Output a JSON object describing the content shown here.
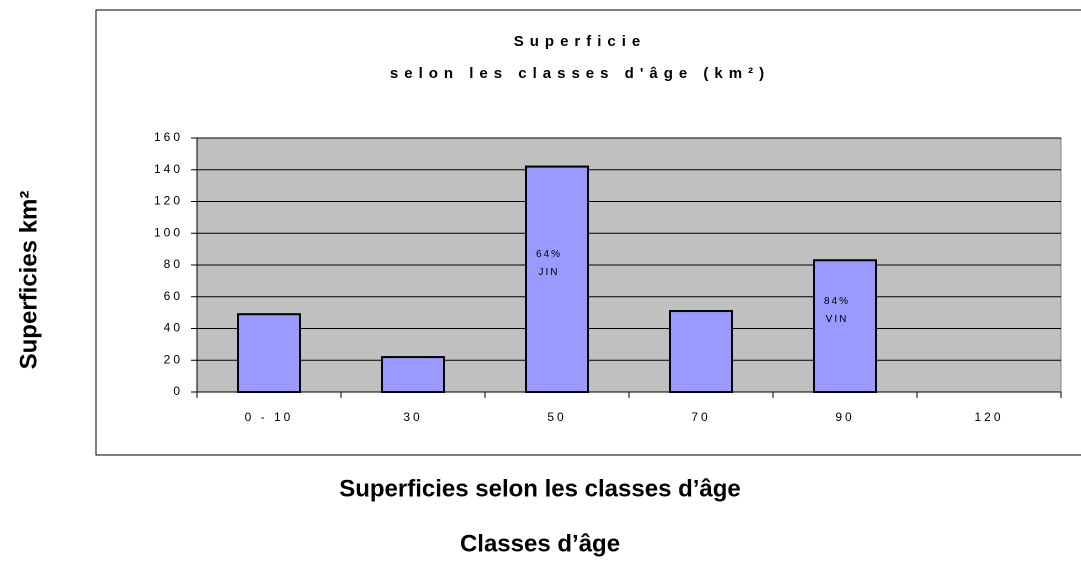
{
  "chart_data": {
    "type": "bar",
    "title": "Superficie",
    "subtitle": "selon les classes d'âge (km²)",
    "y_axis_label": "Superficies km²",
    "caption": "Superficies selon les classes d’âge",
    "x_axis_label": "Classes d’âge",
    "categories": [
      "0 - 10",
      "30",
      "50",
      "70",
      "90",
      "120"
    ],
    "values": [
      49,
      22,
      142,
      51,
      83,
      0
    ],
    "color": "#9999ff",
    "ylim": [
      0,
      160
    ],
    "yticks": [
      0,
      20,
      40,
      60,
      80,
      100,
      120,
      140,
      160
    ],
    "grid": true,
    "annotations": [
      {
        "category": "50",
        "lines": [
          "64%",
          "JIN"
        ]
      },
      {
        "category": "90",
        "lines": [
          "84%",
          "VIN"
        ]
      }
    ]
  }
}
